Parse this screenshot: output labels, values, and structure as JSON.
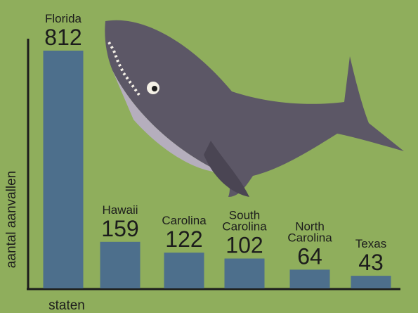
{
  "chart_data": {
    "type": "bar",
    "categories": [
      "Florida",
      "Hawaii",
      "Carolina",
      "South Carolina",
      "North Carolina",
      "Texas"
    ],
    "values": [
      812,
      159,
      122,
      102,
      64,
      43
    ],
    "color": "#4d6f8c",
    "y_label": "aantal aanvallen",
    "x_label": "staten"
  }
}
